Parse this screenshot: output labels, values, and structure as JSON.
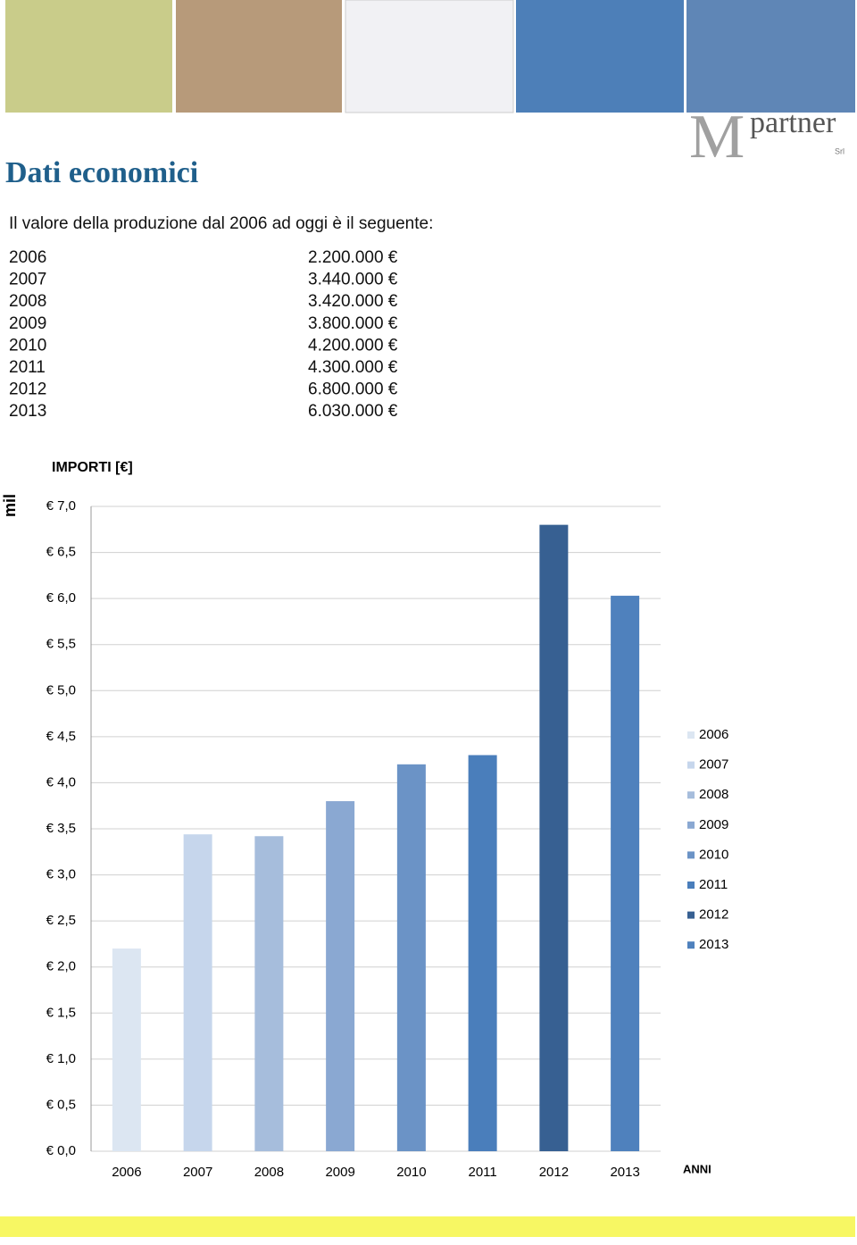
{
  "header": {
    "title": "Dati economici",
    "logo_text": "partner",
    "logo_sub": "Srl",
    "logo_letter": "M"
  },
  "intro": "Il valore della produzione dal 2006 ad oggi è il seguente:",
  "table": {
    "rows": [
      [
        "2006",
        "2.200.000 €"
      ],
      [
        "2007",
        "3.440.000 €"
      ],
      [
        "2008",
        "3.420.000 €"
      ],
      [
        "2009",
        "3.800.000 €"
      ],
      [
        "2010",
        "4.200.000 €"
      ],
      [
        "2011",
        "4.300.000 €"
      ],
      [
        "2012",
        "6.800.000 €"
      ],
      [
        "2013",
        "6.030.000 €"
      ]
    ]
  },
  "chart_data": {
    "type": "bar",
    "title": "IMPORTI [€]",
    "y_label": "mil",
    "x_label": "ANNI",
    "categories": [
      "2006",
      "2007",
      "2008",
      "2009",
      "2010",
      "2011",
      "2012",
      "2013"
    ],
    "values": [
      2.2,
      3.44,
      3.42,
      3.8,
      4.2,
      4.3,
      6.8,
      6.03
    ],
    "colors": [
      "#dce6f2",
      "#c6d6ec",
      "#a6bddc",
      "#8aa8d2",
      "#6b93c6",
      "#4a7ebb",
      "#376092",
      "#4f81bd"
    ],
    "ylim": [
      0,
      7
    ],
    "yticks": [
      {
        "value": 0,
        "label": "€ 0,0"
      },
      {
        "value": 0.5,
        "label": "€ 0,5"
      },
      {
        "value": 1,
        "label": "€ 1,0"
      },
      {
        "value": 1.5,
        "label": "€ 1,5"
      },
      {
        "value": 2,
        "label": "€ 2,0"
      },
      {
        "value": 2.5,
        "label": "€ 2,5"
      },
      {
        "value": 3,
        "label": "€ 3,0"
      },
      {
        "value": 3.5,
        "label": "€ 3,5"
      },
      {
        "value": 4,
        "label": "€ 4,0"
      },
      {
        "value": 4.5,
        "label": "€ 4,5"
      },
      {
        "value": 5,
        "label": "€ 5,0"
      },
      {
        "value": 5.5,
        "label": "€ 5,5"
      },
      {
        "value": 6,
        "label": "€ 6,0"
      },
      {
        "value": 6.5,
        "label": "€ 6,5"
      },
      {
        "value": 7,
        "label": "€ 7,0"
      }
    ],
    "grid": true,
    "legend": "right"
  }
}
